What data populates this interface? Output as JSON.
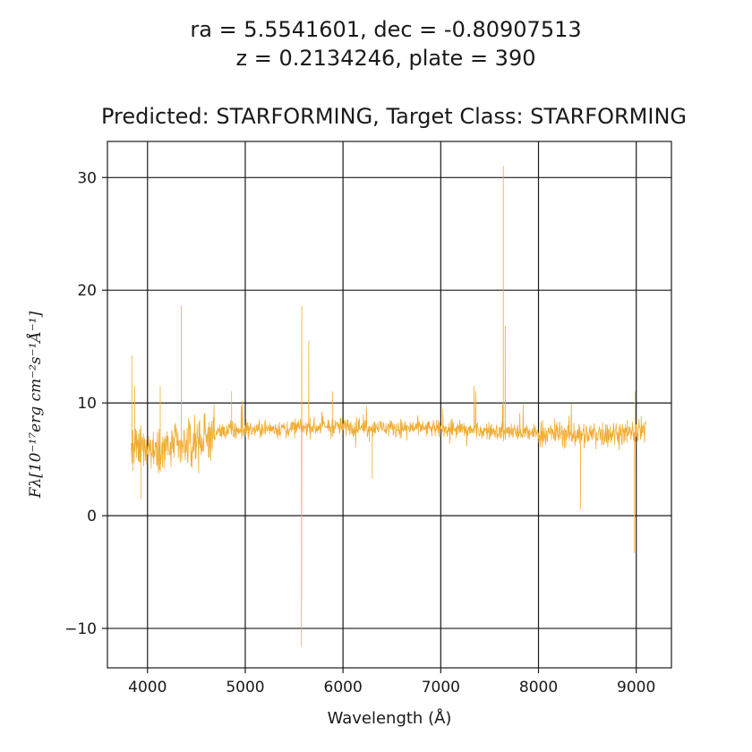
{
  "chart_data": {
    "type": "line",
    "title_lines": [
      "ra = 5.5541601, dec = -0.80907513",
      "z = 0.2134246, plate = 390",
      "Predicted: STARFORMING, Target Class: STARFORMING"
    ],
    "xlabel": "Wavelength (Å)",
    "ylabel": "Fλ[10⁻¹⁷erg cm⁻²s⁻¹Å⁻¹]",
    "xlim": [
      3590,
      9360
    ],
    "ylim": [
      -13.5,
      33.2
    ],
    "xticks": [
      4000,
      5000,
      6000,
      7000,
      8000,
      9000
    ],
    "xtick_labels": [
      "4000",
      "5000",
      "6000",
      "7000",
      "8000",
      "9000"
    ],
    "yticks": [
      -10,
      0,
      10,
      20,
      30
    ],
    "ytick_labels": [
      "−10",
      "0",
      "10",
      "20",
      "30"
    ],
    "grid": true,
    "series": [
      {
        "color": "#f0ad32",
        "x_range": [
          3830,
          9100
        ],
        "continuum": [
          [
            3830,
            5.8
          ],
          [
            4000,
            6.0
          ],
          [
            4400,
            6.2
          ],
          [
            4700,
            7.4
          ],
          [
            5000,
            7.6
          ],
          [
            5500,
            7.8
          ],
          [
            6000,
            7.9
          ],
          [
            6500,
            7.8
          ],
          [
            7000,
            7.7
          ],
          [
            7500,
            7.5
          ],
          [
            8000,
            7.3
          ],
          [
            8500,
            7.2
          ],
          [
            9100,
            7.4
          ]
        ],
        "features": [
          {
            "x": 3840,
            "y": 14.2
          },
          {
            "x": 3850,
            "y": 4.0
          },
          {
            "x": 3870,
            "y": 11.5
          },
          {
            "x": 3935,
            "y": 1.5
          },
          {
            "x": 4130,
            "y": 11.5
          },
          {
            "x": 4345,
            "y": 18.6
          },
          {
            "x": 4860,
            "y": 11.0
          },
          {
            "x": 5575,
            "y": -11.6
          },
          {
            "x": 5578,
            "y": 18.6
          },
          {
            "x": 5650,
            "y": 15.5
          },
          {
            "x": 5895,
            "y": 11.0
          },
          {
            "x": 6300,
            "y": 3.3
          },
          {
            "x": 7340,
            "y": 11.5
          },
          {
            "x": 7640,
            "y": 31.0
          },
          {
            "x": 7660,
            "y": 16.8
          },
          {
            "x": 8430,
            "y": 0.6
          },
          {
            "x": 8980,
            "y": -3.3
          },
          {
            "x": 8990,
            "y": 11.0
          }
        ]
      }
    ]
  }
}
